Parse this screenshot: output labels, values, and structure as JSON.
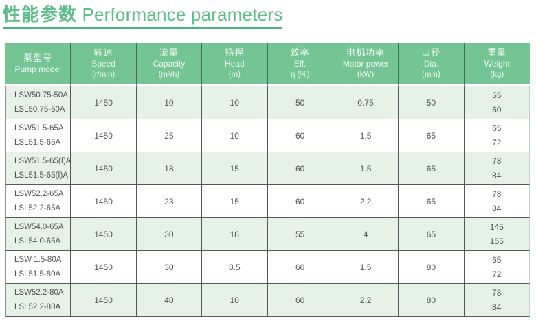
{
  "title": {
    "zh": "性能参数",
    "en": "Performance parameters"
  },
  "columns": [
    {
      "zh": "泵型号",
      "en": "Pump model",
      "unit": ""
    },
    {
      "zh": "转速",
      "en": "Speed",
      "unit": "(r/min)"
    },
    {
      "zh": "流量",
      "en": "Capacity",
      "unit": "(m³/h)"
    },
    {
      "zh": "扬程",
      "en": "Head",
      "unit": "(m)"
    },
    {
      "zh": "效率",
      "en": "Eff.",
      "unit": "η (%)"
    },
    {
      "zh": "电机功率",
      "en": "Motor power",
      "unit": "(kW)"
    },
    {
      "zh": "口径",
      "en": "Dia.",
      "unit": "(mm)"
    },
    {
      "zh": "重量",
      "en": "Weight",
      "unit": "(kg)"
    }
  ],
  "rows": [
    {
      "models": [
        "LSW50.75-50A",
        "LSL50.75-50A"
      ],
      "speed": "1450",
      "capacity": "10",
      "head": "10",
      "eff": "50",
      "power": "0.75",
      "dia": "50",
      "weights": [
        "55",
        "60"
      ]
    },
    {
      "models": [
        "LSW51.5-65A",
        "LSL51.5-65A"
      ],
      "speed": "1450",
      "capacity": "25",
      "head": "10",
      "eff": "60",
      "power": "1.5",
      "dia": "65",
      "weights": [
        "65",
        "72"
      ]
    },
    {
      "models": [
        "LSW51.5-65(I)A",
        "LSL51.5-65(I)A"
      ],
      "speed": "1450",
      "capacity": "18",
      "head": "15",
      "eff": "60",
      "power": "1.5",
      "dia": "65",
      "weights": [
        "78",
        "84"
      ]
    },
    {
      "models": [
        "LSW52.2-65A",
        "LSL52.2-65A"
      ],
      "speed": "1450",
      "capacity": "23",
      "head": "15",
      "eff": "60",
      "power": "2.2",
      "dia": "65",
      "weights": [
        "78",
        "84"
      ]
    },
    {
      "models": [
        "LSW54.0-65A",
        "LSL54.0-65A"
      ],
      "speed": "1450",
      "capacity": "30",
      "head": "18",
      "eff": "55",
      "power": "4",
      "dia": "65",
      "weights": [
        "145",
        "155"
      ]
    },
    {
      "models": [
        "LSW 1.5-80A",
        "LSL51.5-80A"
      ],
      "speed": "1450",
      "capacity": "30",
      "head": "8.5",
      "eff": "60",
      "power": "1.5",
      "dia": "80",
      "weights": [
        "65",
        "72"
      ]
    },
    {
      "models": [
        "LSW52.2-80A",
        "LSL52.2-80A"
      ],
      "speed": "1450",
      "capacity": "40",
      "head": "10",
      "eff": "60",
      "power": "2.2",
      "dia": "80",
      "weights": [
        "78",
        "84"
      ]
    }
  ],
  "colors": {
    "title_green": "#5cbd89",
    "underline_green": "#4db37e",
    "header_green": "#74c593",
    "row_green": "#e6f1e8",
    "row_white": "#ffffff",
    "border_dark": "#56595b",
    "text_dark": "#4f5254"
  }
}
